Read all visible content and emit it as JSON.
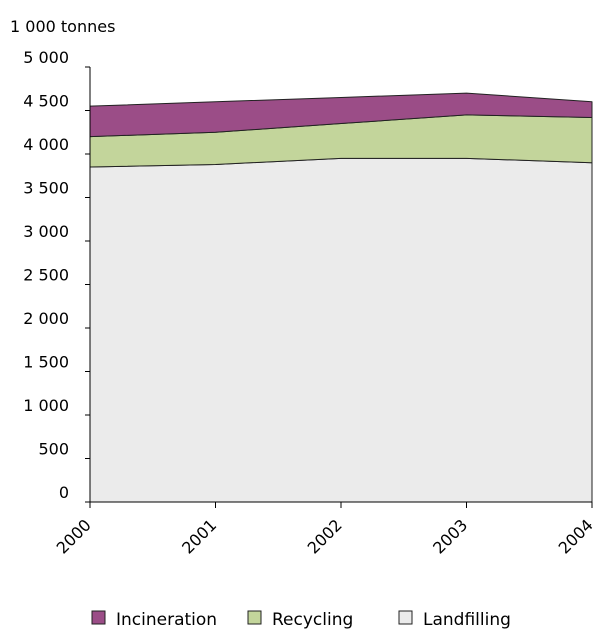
{
  "chart_data": {
    "type": "area",
    "stacked": true,
    "unit_label": "1 000 tonnes",
    "x": [
      "2000",
      "2001",
      "2002",
      "2003",
      "2004"
    ],
    "ylim": [
      0,
      5000
    ],
    "y_ticks": [
      0,
      500,
      1000,
      1500,
      2000,
      2500,
      3000,
      3500,
      4000,
      4500,
      5000
    ],
    "y_tick_labels": [
      "0",
      "500",
      "1 000",
      "1 500",
      "2 000",
      "2 500",
      "3 000",
      "3 500",
      "4 000",
      "4 500",
      "5 000"
    ],
    "series": [
      {
        "name": "Landfilling",
        "values": [
          3850,
          3880,
          3950,
          3950,
          3900
        ],
        "color": "#ebebeb"
      },
      {
        "name": "Recycling",
        "values": [
          350,
          370,
          400,
          500,
          520
        ],
        "color": "#c3d59b"
      },
      {
        "name": "Incineration",
        "values": [
          350,
          350,
          300,
          250,
          180
        ],
        "color": "#9b4d87"
      }
    ],
    "legend": {
      "placement": "bottom",
      "order": [
        "Incineration",
        "Recycling",
        "Landfilling"
      ]
    },
    "grid": false
  }
}
